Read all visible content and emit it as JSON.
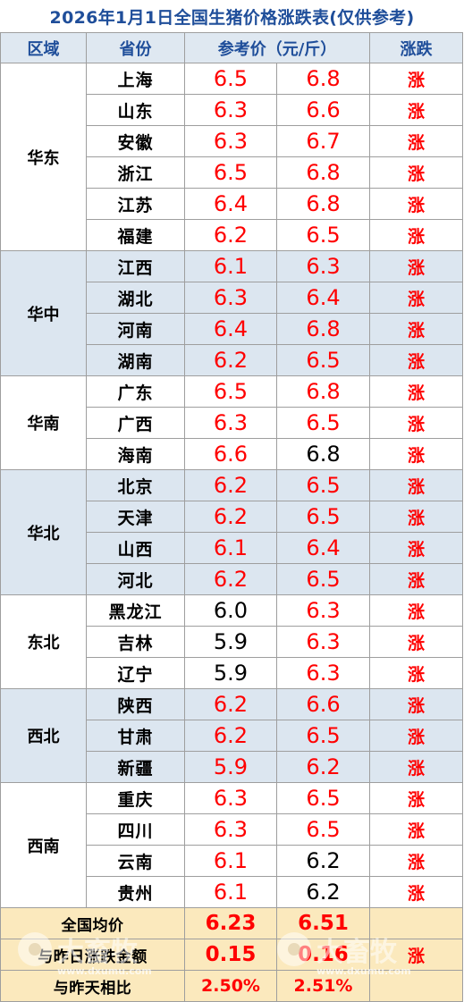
{
  "title": "2026年1月1日全国生猪价格涨跌表(仅供参考)",
  "header": {
    "region": "区域",
    "province": "省份",
    "price": "参考价（元/斤）",
    "trend": "涨跌"
  },
  "colors": {
    "header_bg": "#dfe8f1",
    "band": "#dce6f0",
    "summary_bg": "#fbe9bd",
    "up": "#ff0000",
    "title": "#1f4e9a"
  },
  "regions": [
    {
      "name": "华东",
      "rows": [
        {
          "province": "上海",
          "p1": "6.5",
          "p2": "6.8",
          "p1_up": true,
          "p2_up": true,
          "trend": "涨"
        },
        {
          "province": "山东",
          "p1": "6.3",
          "p2": "6.6",
          "p1_up": true,
          "p2_up": true,
          "trend": "涨"
        },
        {
          "province": "安徽",
          "p1": "6.3",
          "p2": "6.7",
          "p1_up": true,
          "p2_up": true,
          "trend": "涨"
        },
        {
          "province": "浙江",
          "p1": "6.5",
          "p2": "6.8",
          "p1_up": true,
          "p2_up": true,
          "trend": "涨"
        },
        {
          "province": "江苏",
          "p1": "6.4",
          "p2": "6.8",
          "p1_up": true,
          "p2_up": true,
          "trend": "涨"
        },
        {
          "province": "福建",
          "p1": "6.2",
          "p2": "6.5",
          "p1_up": true,
          "p2_up": true,
          "trend": "涨"
        }
      ]
    },
    {
      "name": "华中",
      "rows": [
        {
          "province": "江西",
          "p1": "6.1",
          "p2": "6.3",
          "p1_up": true,
          "p2_up": true,
          "trend": "涨"
        },
        {
          "province": "湖北",
          "p1": "6.3",
          "p2": "6.4",
          "p1_up": true,
          "p2_up": true,
          "trend": "涨"
        },
        {
          "province": "河南",
          "p1": "6.4",
          "p2": "6.8",
          "p1_up": true,
          "p2_up": true,
          "trend": "涨"
        },
        {
          "province": "湖南",
          "p1": "6.2",
          "p2": "6.5",
          "p1_up": true,
          "p2_up": true,
          "trend": "涨"
        }
      ]
    },
    {
      "name": "华南",
      "rows": [
        {
          "province": "广东",
          "p1": "6.5",
          "p2": "6.8",
          "p1_up": true,
          "p2_up": true,
          "trend": "涨"
        },
        {
          "province": "广西",
          "p1": "6.3",
          "p2": "6.5",
          "p1_up": true,
          "p2_up": true,
          "trend": "涨"
        },
        {
          "province": "海南",
          "p1": "6.6",
          "p2": "6.8",
          "p1_up": true,
          "p2_up": false,
          "trend": "涨"
        }
      ]
    },
    {
      "name": "华北",
      "rows": [
        {
          "province": "北京",
          "p1": "6.2",
          "p2": "6.5",
          "p1_up": true,
          "p2_up": true,
          "trend": "涨"
        },
        {
          "province": "天津",
          "p1": "6.2",
          "p2": "6.5",
          "p1_up": true,
          "p2_up": true,
          "trend": "涨"
        },
        {
          "province": "山西",
          "p1": "6.1",
          "p2": "6.4",
          "p1_up": true,
          "p2_up": true,
          "trend": "涨"
        },
        {
          "province": "河北",
          "p1": "6.2",
          "p2": "6.5",
          "p1_up": true,
          "p2_up": true,
          "trend": "涨"
        }
      ]
    },
    {
      "name": "东北",
      "rows": [
        {
          "province": "黑龙江",
          "p1": "6.0",
          "p2": "6.3",
          "p1_up": false,
          "p2_up": true,
          "trend": "涨"
        },
        {
          "province": "吉林",
          "p1": "5.9",
          "p2": "6.3",
          "p1_up": false,
          "p2_up": true,
          "trend": "涨"
        },
        {
          "province": "辽宁",
          "p1": "5.9",
          "p2": "6.3",
          "p1_up": false,
          "p2_up": true,
          "trend": "涨"
        }
      ]
    },
    {
      "name": "西北",
      "rows": [
        {
          "province": "陕西",
          "p1": "6.2",
          "p2": "6.6",
          "p1_up": true,
          "p2_up": true,
          "trend": "涨"
        },
        {
          "province": "甘肃",
          "p1": "6.2",
          "p2": "6.5",
          "p1_up": true,
          "p2_up": true,
          "trend": "涨"
        },
        {
          "province": "新疆",
          "p1": "5.9",
          "p2": "6.2",
          "p1_up": true,
          "p2_up": true,
          "trend": "涨"
        }
      ]
    },
    {
      "name": "西南",
      "rows": [
        {
          "province": "重庆",
          "p1": "6.3",
          "p2": "6.5",
          "p1_up": true,
          "p2_up": true,
          "trend": "涨"
        },
        {
          "province": "四川",
          "p1": "6.3",
          "p2": "6.5",
          "p1_up": true,
          "p2_up": true,
          "trend": "涨"
        },
        {
          "province": "云南",
          "p1": "6.1",
          "p2": "6.2",
          "p1_up": true,
          "p2_up": false,
          "trend": "涨"
        },
        {
          "province": "贵州",
          "p1": "6.1",
          "p2": "6.2",
          "p1_up": true,
          "p2_up": false,
          "trend": "涨"
        }
      ]
    }
  ],
  "summary": {
    "avg_label": "全国均价",
    "avg_p1": "6.23",
    "avg_p2": "6.51",
    "change_label": "与昨日涨跌金额",
    "change_p1": "0.15",
    "change_p2": "0.16",
    "change_trend": "涨",
    "pct_label": "与昨天相比",
    "pct_p1": "2.50%",
    "pct_p2": "2.51%"
  },
  "watermark": {
    "text": "大畜牧",
    "url": "www.dxumu.com"
  }
}
